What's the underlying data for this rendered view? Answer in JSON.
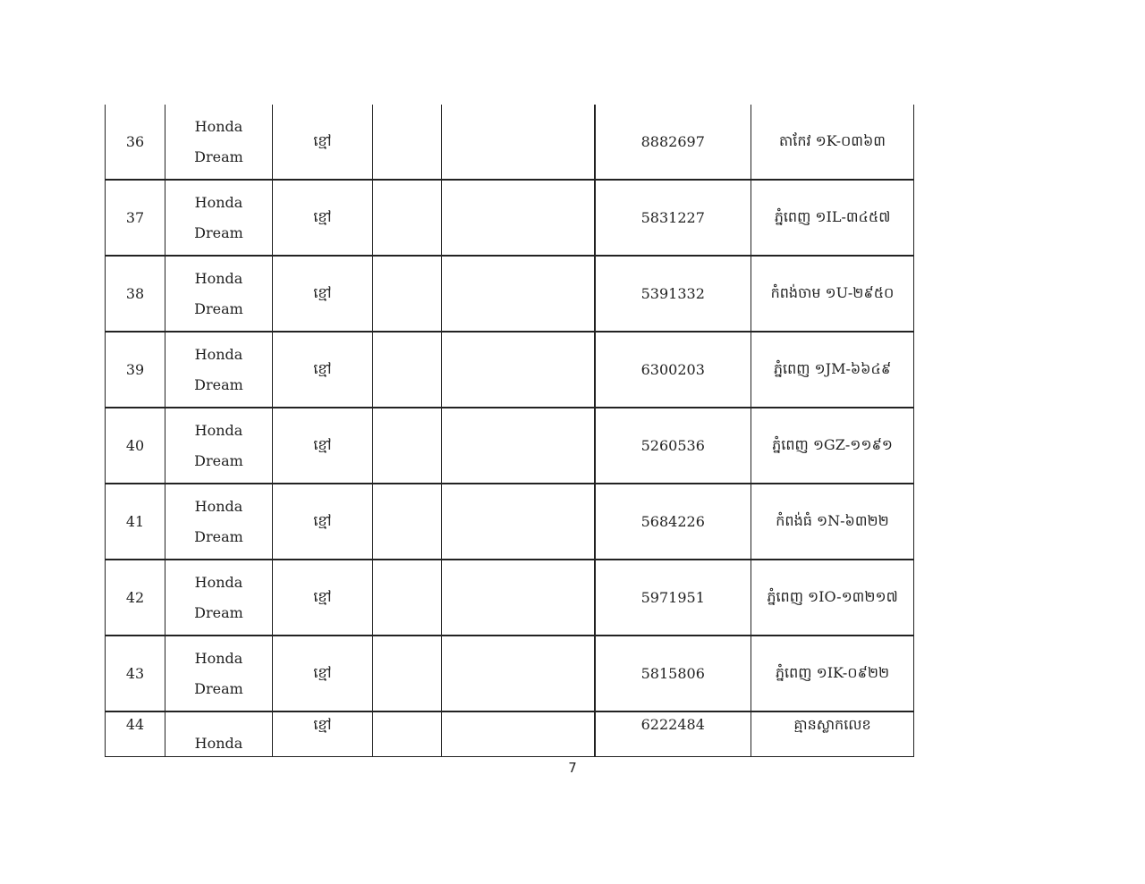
{
  "rows": [
    {
      "no": "36",
      "model_line1": "Honda",
      "model_line2": "Dream",
      "color": "ខ្មៅ",
      "col4": "",
      "col5": "",
      "number": "8882697",
      "plate": "តាកែវ ១K-០៣៦៣"
    },
    {
      "no": "37",
      "model_line1": "Honda",
      "model_line2": "Dream",
      "color": "ខ្មៅ",
      "col4": "",
      "col5": "",
      "number": "5831227",
      "plate": "ភ្នំពេញ ១IL-៣៤៥៧"
    },
    {
      "no": "38",
      "model_line1": "Honda",
      "model_line2": "Dream",
      "color": "ខ្មៅ",
      "col4": "",
      "col5": "",
      "number": "5391332",
      "plate": "កំពង់ចាម ១U-២៩៥០"
    },
    {
      "no": "39",
      "model_line1": "Honda",
      "model_line2": "Dream",
      "color": "ខ្មៅ",
      "col4": "",
      "col5": "",
      "number": "6300203",
      "plate": "ភ្នំពេញ ១JM-៦៦៤៩"
    },
    {
      "no": "40",
      "model_line1": "Honda",
      "model_line2": "Dream",
      "color": "ខ្មៅ",
      "col4": "",
      "col5": "",
      "number": "5260536",
      "plate": "ភ្នំពេញ ១GZ-១១៩១"
    },
    {
      "no": "41",
      "model_line1": "Honda",
      "model_line2": "Dream",
      "color": "ខ្មៅ",
      "col4": "",
      "col5": "",
      "number": "5684226",
      "plate": "កំពង់ធំ ១N-៦៣២២"
    },
    {
      "no": "42",
      "model_line1": "Honda",
      "model_line2": "Dream",
      "color": "ខ្មៅ",
      "col4": "",
      "col5": "",
      "number": "5971951",
      "plate": "ភ្នំពេញ ១IO-១៣២១៧"
    },
    {
      "no": "43",
      "model_line1": "Honda",
      "model_line2": "Dream",
      "color": "ខ្មៅ",
      "col4": "",
      "col5": "",
      "number": "5815806",
      "plate": "ភ្នំពេញ ១IK-០៩២២"
    }
  ],
  "last_row": {
    "no": "44",
    "model": "Honda",
    "color": "ខ្មៅ",
    "number": "6222484",
    "plate": "គ្មានស្លាកលេខ"
  },
  "page_number": "7"
}
